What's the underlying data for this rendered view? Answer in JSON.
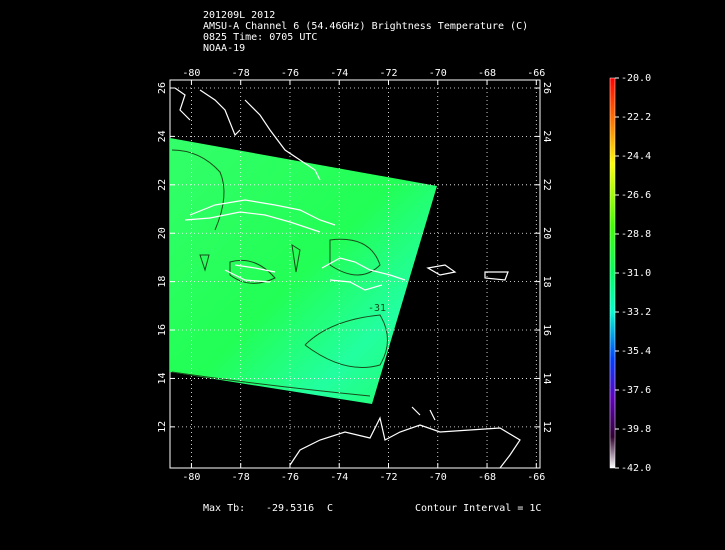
{
  "chart_data": {
    "type": "map",
    "title_lines": [
      "201209L 2012",
      "AMSU-A Channel 6 (54.46GHz) Brightness Temperature (C)",
      "0825 Time: 0705 UTC",
      "NOAA-19"
    ],
    "xlim": [
      -80.87,
      -65.85
    ],
    "ylim": [
      10.3,
      26.33
    ],
    "xticks": [
      -80,
      -78,
      -76,
      -74,
      -72,
      -70,
      -68,
      -66
    ],
    "yticks": [
      12,
      14,
      16,
      18,
      20,
      22,
      24,
      26
    ],
    "grid": true,
    "contour_label": "-31",
    "colorbar": {
      "lim": [
        -42,
        -20
      ],
      "ticks": [
        {
          "value": -20,
          "label": "-20.0"
        },
        {
          "value": -22.2,
          "label": "-22.2"
        },
        {
          "value": -24.4,
          "label": "-24.4"
        },
        {
          "value": -26.6,
          "label": "-26.6"
        },
        {
          "value": -28.8,
          "label": "-28.8"
        },
        {
          "value": -31,
          "label": "-31.0"
        },
        {
          "value": -33.2,
          "label": "-33.2"
        },
        {
          "value": -35.4,
          "label": "-35.4"
        },
        {
          "value": -37.6,
          "label": "-37.6"
        },
        {
          "value": -39.8,
          "label": "-39.8"
        },
        {
          "value": -42,
          "label": "-42.0"
        }
      ]
    },
    "footer": {
      "max_label": "Max Tb:",
      "max_value": "-29.5316",
      "max_unit": "C",
      "contour_interval": "Contour Interval = 1C"
    }
  }
}
